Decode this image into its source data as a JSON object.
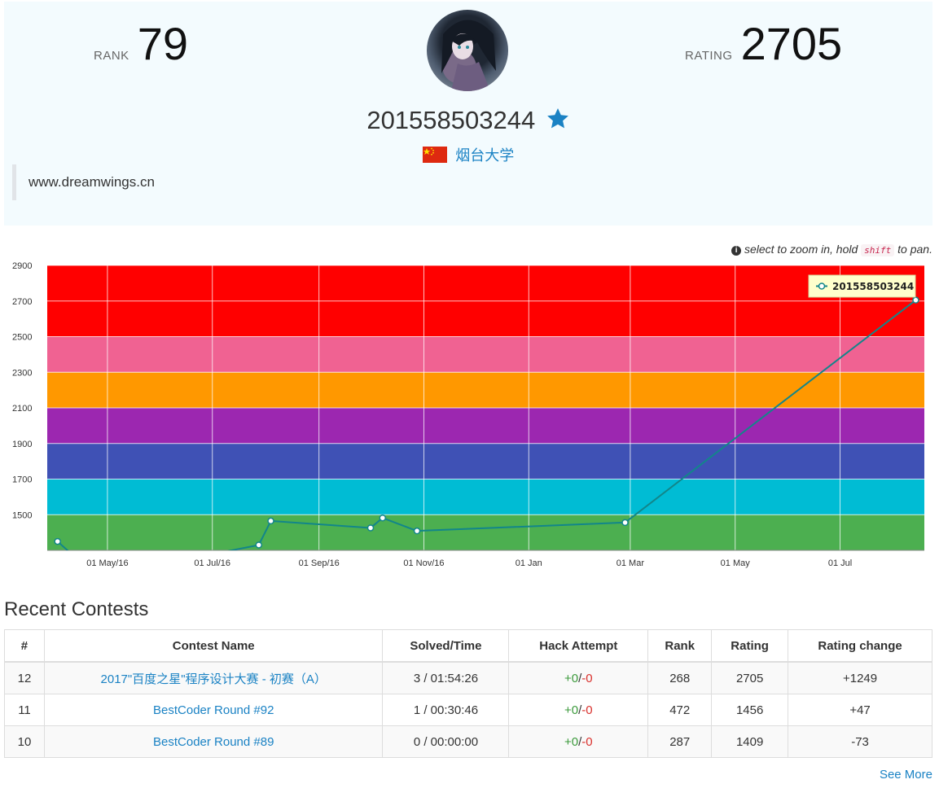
{
  "profile": {
    "rank_label": "RANK",
    "rank": "79",
    "rating_label": "RATING",
    "rating": "2705",
    "username": "201558503244",
    "school": "烟台大学",
    "motto": "www.dreamwings.cn"
  },
  "chart_hint": {
    "text_before": "select to zoom in, hold",
    "key": "shift",
    "text_after": "to pan."
  },
  "chart_data": {
    "type": "line",
    "series": [
      {
        "name": "201558503244",
        "x": [
          "2016-04-02",
          "2016-04-25",
          "2016-07-28",
          "2016-08-04",
          "2016-10-01",
          "2016-10-08",
          "2016-10-28",
          "2017-02-26",
          "2017-08-14"
        ],
        "y": [
          1350,
          1150,
          1330,
          1465,
          1426,
          1482,
          1409,
          1456,
          2705
        ],
        "color": "#12868a"
      }
    ],
    "xlim": [
      "2016-03-27",
      "2017-08-19"
    ],
    "ylim": [
      1300,
      2900
    ],
    "x_ticks": [
      "01 May/16",
      "01 Jul/16",
      "01 Sep/16",
      "01 Nov/16",
      "01 Jan",
      "01 Mar",
      "01 May",
      "01 Jul"
    ],
    "x_tick_dates": [
      "2016-05-01",
      "2016-07-01",
      "2016-09-01",
      "2016-11-01",
      "2017-01-01",
      "2017-03-01",
      "2017-05-01",
      "2017-07-01"
    ],
    "y_ticks": [
      1500,
      1700,
      1900,
      2100,
      2300,
      2500,
      2700,
      2900
    ],
    "bands": [
      {
        "from": 1300,
        "to": 1500,
        "color": "#4caf50"
      },
      {
        "from": 1500,
        "to": 1700,
        "color": "#00bcd4"
      },
      {
        "from": 1700,
        "to": 1900,
        "color": "#3f51b5"
      },
      {
        "from": 1900,
        "to": 2100,
        "color": "#9c27b0"
      },
      {
        "from": 2100,
        "to": 2300,
        "color": "#ff9800"
      },
      {
        "from": 2300,
        "to": 2500,
        "color": "#f06292"
      },
      {
        "from": 2500,
        "to": 2900,
        "color": "#ff0000"
      }
    ],
    "grid": true,
    "legend": "top-right"
  },
  "recent": {
    "title": "Recent Contests",
    "headers": [
      "#",
      "Contest Name",
      "Solved/Time",
      "Hack Attempt",
      "Rank",
      "Rating",
      "Rating change"
    ],
    "rows": [
      {
        "id": "12",
        "name": "2017\"百度之星\"程序设计大赛 - 初赛（A）",
        "solved": "3 / 01:54:26",
        "hack_plus": "+0",
        "hack_minus": "-0",
        "rank": "268",
        "rating": "2705",
        "change": "+1249"
      },
      {
        "id": "11",
        "name": "BestCoder Round #92",
        "solved": "1 / 00:30:46",
        "hack_plus": "+0",
        "hack_minus": "-0",
        "rank": "472",
        "rating": "1456",
        "change": "+47"
      },
      {
        "id": "10",
        "name": "BestCoder Round #89",
        "solved": "0 / 00:00:00",
        "hack_plus": "+0",
        "hack_minus": "-0",
        "rank": "287",
        "rating": "1409",
        "change": "-73"
      }
    ],
    "see_more": "See More"
  },
  "colors": {
    "accent": "#1a82c4",
    "positive": "#3c9a3c",
    "negative": "#d9302c"
  }
}
